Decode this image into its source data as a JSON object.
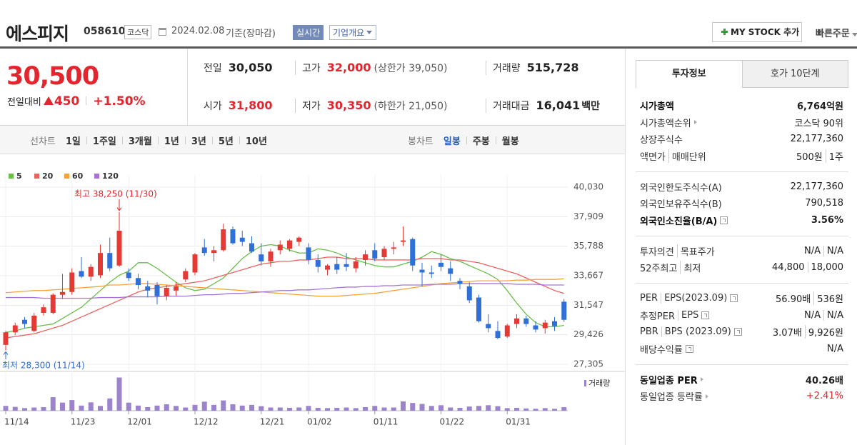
{
  "header": {
    "name": "에스피지",
    "code": "058610",
    "market": "코스닥",
    "date": "2024.02.08",
    "basis": "기준(장마감)",
    "realtime": "실시간",
    "overview": "기업개요",
    "mystock": "MY STOCK 추가",
    "quick_order": "빠른주문"
  },
  "quote": {
    "price": "30,500",
    "price_color": "#e3262e",
    "change_label": "전일대비",
    "change": "450",
    "change_pct": "+1.50%",
    "items": [
      {
        "label": "전일",
        "value": "30,050"
      },
      {
        "label": "고가",
        "value": "32,000",
        "sub": "(상한가 39,050)",
        "color": "#e3262e"
      },
      {
        "label": "거래량",
        "value": "515,728"
      },
      {
        "label": "시가",
        "value": "31,800",
        "color": "#e3262e"
      },
      {
        "label": "저가",
        "value": "30,350",
        "sub": "(하한가 21,050)",
        "color": "#e3262e"
      },
      {
        "label": "거래대금",
        "value": "16,041",
        "unit": "백만"
      }
    ]
  },
  "chart_tabs": {
    "line_label": "선차트",
    "line_periods": [
      "1일",
      "1주일",
      "3개월",
      "1년",
      "3년",
      "5년",
      "10년"
    ],
    "candle_label": "봉차트",
    "candle_periods": [
      "일봉",
      "주봉",
      "월봉"
    ],
    "selected": "일봉",
    "selected_color": "#2a5bbf"
  },
  "chart_data": {
    "type": "candlestick",
    "dates": [
      "11/14",
      null,
      null,
      null,
      null,
      null,
      null,
      "11/23",
      null,
      null,
      null,
      null,
      null,
      "12/01",
      null,
      null,
      null,
      null,
      null,
      null,
      "12/12",
      null,
      null,
      null,
      null,
      null,
      null,
      "12/21",
      null,
      null,
      null,
      null,
      "01/02",
      null,
      null,
      null,
      null,
      null,
      null,
      "01/11",
      null,
      null,
      null,
      null,
      null,
      null,
      "01/22",
      null,
      null,
      null,
      null,
      null,
      null,
      "01/31",
      null,
      null,
      null,
      null,
      null,
      null
    ],
    "open": [
      28700,
      29600,
      30500,
      29700,
      31000,
      31000,
      32300,
      32500,
      34000,
      33600,
      33700,
      35300,
      34400,
      33900,
      33500,
      32900,
      33000,
      32200,
      32600,
      33400,
      33900,
      35700,
      35300,
      35500,
      37000,
      36400,
      36000,
      35200,
      34700,
      35500,
      35600,
      36100,
      35700,
      34800,
      34100,
      34500,
      34500,
      34200,
      34800,
      35500,
      35000,
      35600,
      36100,
      36300,
      34100,
      33900,
      34600,
      34200,
      33300,
      32900,
      32100,
      30200,
      29700,
      29300,
      30200,
      30600,
      30100,
      29900,
      30400,
      31800
    ],
    "high": [
      29700,
      30300,
      30700,
      31000,
      31600,
      32400,
      33800,
      34200,
      35000,
      34500,
      35900,
      36400,
      38250,
      34200,
      33800,
      33300,
      33200,
      33000,
      33200,
      34200,
      35300,
      36300,
      35800,
      37400,
      37200,
      36900,
      36500,
      36000,
      35600,
      36200,
      36300,
      36500,
      36000,
      35200,
      34500,
      35000,
      35300,
      35000,
      35500,
      36000,
      35800,
      36100,
      37200,
      36400,
      34600,
      34400,
      35200,
      34700,
      33500,
      33200,
      32300,
      30900,
      30400,
      30200,
      30900,
      30800,
      30400,
      30500,
      30700,
      32000
    ],
    "low": [
      28300,
      29400,
      29900,
      29600,
      30800,
      30900,
      32000,
      32300,
      33500,
      33300,
      33500,
      34000,
      34300,
      33300,
      32700,
      32100,
      31600,
      31900,
      32200,
      33200,
      33700,
      35100,
      34700,
      35400,
      35900,
      35800,
      35300,
      34400,
      34300,
      35200,
      35400,
      35800,
      34500,
      33900,
      33700,
      33800,
      34000,
      33900,
      34400,
      34700,
      34800,
      35200,
      35800,
      34000,
      32900,
      33500,
      34000,
      33300,
      32700,
      31700,
      30300,
      29600,
      29100,
      29200,
      29900,
      30000,
      29600,
      29500,
      29700,
      30350
    ],
    "close": [
      29600,
      30100,
      30200,
      30800,
      31400,
      32300,
      32500,
      33900,
      33600,
      34300,
      35300,
      34200,
      36900,
      33500,
      33000,
      32600,
      32200,
      32800,
      32900,
      34000,
      35200,
      35300,
      35500,
      37000,
      36000,
      36100,
      35400,
      34700,
      35400,
      35900,
      36200,
      36400,
      34800,
      34300,
      34400,
      34100,
      34300,
      34700,
      35200,
      34900,
      35600,
      35700,
      36200,
      34400,
      33900,
      33800,
      34300,
      33800,
      33100,
      31900,
      30400,
      29900,
      29200,
      30100,
      30600,
      30200,
      29800,
      30300,
      30050,
      30500
    ],
    "up_color": "#e53935",
    "down_color": "#2f6fd8",
    "ma": [
      {
        "name": "5",
        "color": "#6abf4b",
        "values": [
          29600,
          29700,
          29900,
          30000,
          30100,
          30200,
          30600,
          31000,
          31400,
          32000,
          32600,
          33200,
          33700,
          34000,
          34600,
          34600,
          34200,
          33700,
          33200,
          32800,
          32600,
          32700,
          33100,
          33500,
          34200,
          34900,
          35400,
          35800,
          35900,
          35800,
          35500,
          35300,
          35300,
          35600,
          35500,
          35300,
          35000,
          34800,
          34600,
          34400,
          34300,
          34300,
          34500,
          34700,
          35000,
          35400,
          35200,
          34900,
          34700,
          34400,
          34100,
          33800,
          33400,
          32600,
          31700,
          30900,
          30300,
          30000,
          30000,
          30100
        ]
      },
      {
        "name": "20",
        "color": "#f06262",
        "values": [
          29200,
          29300,
          29400,
          29500,
          29700,
          29900,
          30100,
          30400,
          30700,
          31000,
          31300,
          31600,
          31900,
          32200,
          32500,
          32700,
          32800,
          32900,
          33000,
          33100,
          33200,
          33300,
          33500,
          33700,
          33900,
          34100,
          34300,
          34500,
          34600,
          34700,
          34700,
          34800,
          34800,
          34900,
          35000,
          35000,
          34900,
          34900,
          34900,
          34800,
          34800,
          34800,
          34800,
          34800,
          34900,
          34900,
          34900,
          34800,
          34800,
          34700,
          34600,
          34400,
          34200,
          34000,
          33800,
          33500,
          33200,
          32900,
          32600,
          32400
        ]
      },
      {
        "name": "60",
        "color": "#f3a43b",
        "values": [
          32450,
          32500,
          32550,
          32600,
          32600,
          32650,
          32700,
          32750,
          32800,
          32850,
          32900,
          33000,
          33000,
          33050,
          33100,
          33100,
          33050,
          33000,
          32950,
          32900,
          32850,
          32800,
          32750,
          32700,
          32650,
          32600,
          32550,
          32500,
          32450,
          32400,
          32350,
          32300,
          32250,
          32200,
          32200,
          32200,
          32250,
          32300,
          32350,
          32400,
          32500,
          32600,
          32700,
          32800,
          32900,
          33000,
          33100,
          33150,
          33200,
          33250,
          33300,
          33300,
          33300,
          33300,
          33350,
          33350,
          33400,
          33400,
          33400,
          33450
        ]
      },
      {
        "name": "120",
        "color": "#a774d6",
        "values": [
          32100,
          32100,
          32100,
          32100,
          32050,
          32050,
          32050,
          32050,
          32050,
          32050,
          32100,
          32100,
          32100,
          32150,
          32150,
          32150,
          32150,
          32200,
          32200,
          32200,
          32250,
          32300,
          32300,
          32350,
          32400,
          32400,
          32450,
          32500,
          32550,
          32600,
          32600,
          32650,
          32650,
          32700,
          32750,
          32800,
          32850,
          32850,
          32900,
          32900,
          32950,
          32950,
          33000,
          33000,
          33000,
          33050,
          33050,
          33050,
          33100,
          33100,
          33100,
          33100,
          33100,
          33100,
          33050,
          33050,
          33050,
          33000,
          33000,
          33000
        ]
      }
    ],
    "volume": [
      700000,
      560000,
      380000,
      470000,
      520000,
      1970000,
      1180000,
      1550000,
      750000,
      1220000,
      700000,
      1790000,
      4840000,
      1180000,
      750000,
      520000,
      750000,
      940000,
      700000,
      470000,
      850000,
      1320000,
      850000,
      1500000,
      940000,
      750000,
      850000,
      660000,
      470000,
      470000,
      420000,
      470000,
      700000,
      420000,
      380000,
      420000,
      470000,
      380000,
      520000,
      700000,
      470000,
      470000,
      1360000,
      1130000,
      990000,
      700000,
      800000,
      470000,
      420000,
      610000,
      700000,
      800000,
      660000,
      380000,
      420000,
      330000,
      280000,
      380000,
      280000,
      515728
    ],
    "volume_ylim": [
      0,
      5000000
    ],
    "volume_color": "#9b84cc",
    "volume_label": "거래량",
    "ylim": [
      27305,
      40030
    ],
    "yticks": [
      {
        "value": 40030,
        "label": "40,030"
      },
      {
        "value": 37909,
        "label": "37,909"
      },
      {
        "value": 35788,
        "label": "35,788"
      },
      {
        "value": 33667,
        "label": "33,667"
      },
      {
        "value": 31547,
        "label": "31,547"
      },
      {
        "value": 29426,
        "label": "29,426"
      },
      {
        "value": 27305,
        "label": "27,305"
      }
    ],
    "grid": true,
    "high_label": "최고 38,250 (11/30)",
    "high_color": "#e3262e",
    "low_label": "최저 28,300 (11/14)",
    "low_color": "#2f6fd8"
  },
  "invest": {
    "tabs": [
      "투자정보",
      "호가 10단계"
    ],
    "groups": [
      [
        {
          "label": "시가총액",
          "value": "6,764억원",
          "bold": true
        },
        {
          "label": "시가총액순위",
          "link": true,
          "value": "코스닥 90위"
        },
        {
          "label": "상장주식수",
          "value": "22,177,360"
        },
        {
          "label": "액면가",
          "label2": "매매단위",
          "value": "500원",
          "value2": "1주"
        }
      ],
      [
        {
          "label": "외국인한도주식수(A)",
          "value": "22,177,360"
        },
        {
          "label": "외국인보유주식수(B)",
          "value": "790,518"
        },
        {
          "label": "외국인소진율(B/A)",
          "help": true,
          "value": "3.56%",
          "bold": true
        }
      ],
      [
        {
          "label": "투자의견",
          "label2": "목표주가",
          "value": "N/A",
          "value2": "N/A"
        },
        {
          "label": "52주최고",
          "label2": "최저",
          "value": "44,800",
          "value2": "18,000"
        }
      ],
      [
        {
          "label": "PER",
          "label2": "EPS(2023.09)",
          "help": true,
          "value": "56.90배",
          "value2": "536원"
        },
        {
          "label": "추정PER",
          "label2": "EPS",
          "help": true,
          "value": "N/A",
          "value2": "N/A"
        },
        {
          "label": "PBR",
          "label2": "BPS (2023.09)",
          "help": true,
          "value": "3.07배",
          "value2": "9,926원"
        },
        {
          "label": "배당수익률",
          "help": true,
          "value": "N/A"
        }
      ],
      [
        {
          "label": "동일업종 PER",
          "link": true,
          "value": "40.26배",
          "bold": true
        },
        {
          "label": "동일업종 등락률",
          "link": true,
          "value": "+2.41%",
          "color": "#e3262e"
        }
      ]
    ]
  }
}
